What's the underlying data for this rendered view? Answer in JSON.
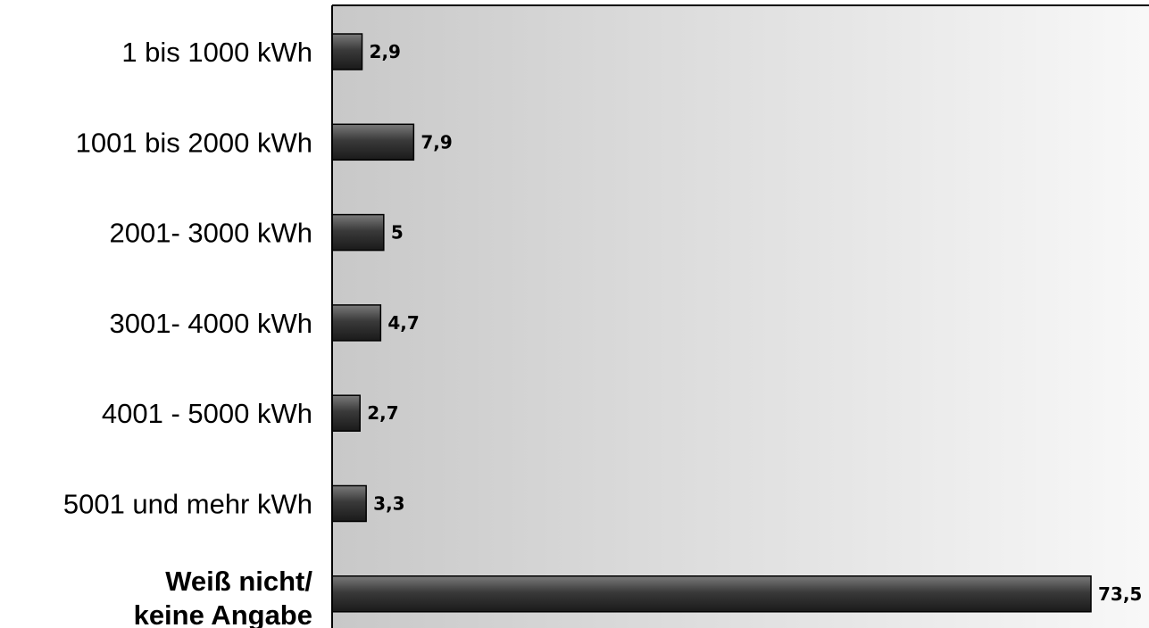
{
  "chart_data": {
    "type": "bar",
    "orientation": "horizontal",
    "categories": [
      [
        "1 bis 1000 kWh"
      ],
      [
        "1001 bis 2000 kWh"
      ],
      [
        "2001- 3000 kWh"
      ],
      [
        "3001- 4000 kWh"
      ],
      [
        "4001 - 5000 kWh"
      ],
      [
        "5001 und mehr kWh"
      ],
      [
        "Weiß nicht/",
        "keine Angabe"
      ]
    ],
    "emphasized_category_index": 6,
    "values": [
      2.9,
      7.9,
      5,
      4.7,
      2.7,
      3.3,
      73.5
    ],
    "value_labels": [
      "2,9",
      "7,9",
      "5",
      "4,7",
      "2,7",
      "3,3",
      "73,5"
    ],
    "xlim": [
      0,
      80
    ],
    "grid": false,
    "legend": "none",
    "colors": {
      "bar_dark": "#1a1a1a",
      "bar_light": "#7a7a7a",
      "plot_bg_left": "#c8c8c8",
      "plot_bg_right": "#f8f8f8",
      "frame": "#000000"
    }
  }
}
